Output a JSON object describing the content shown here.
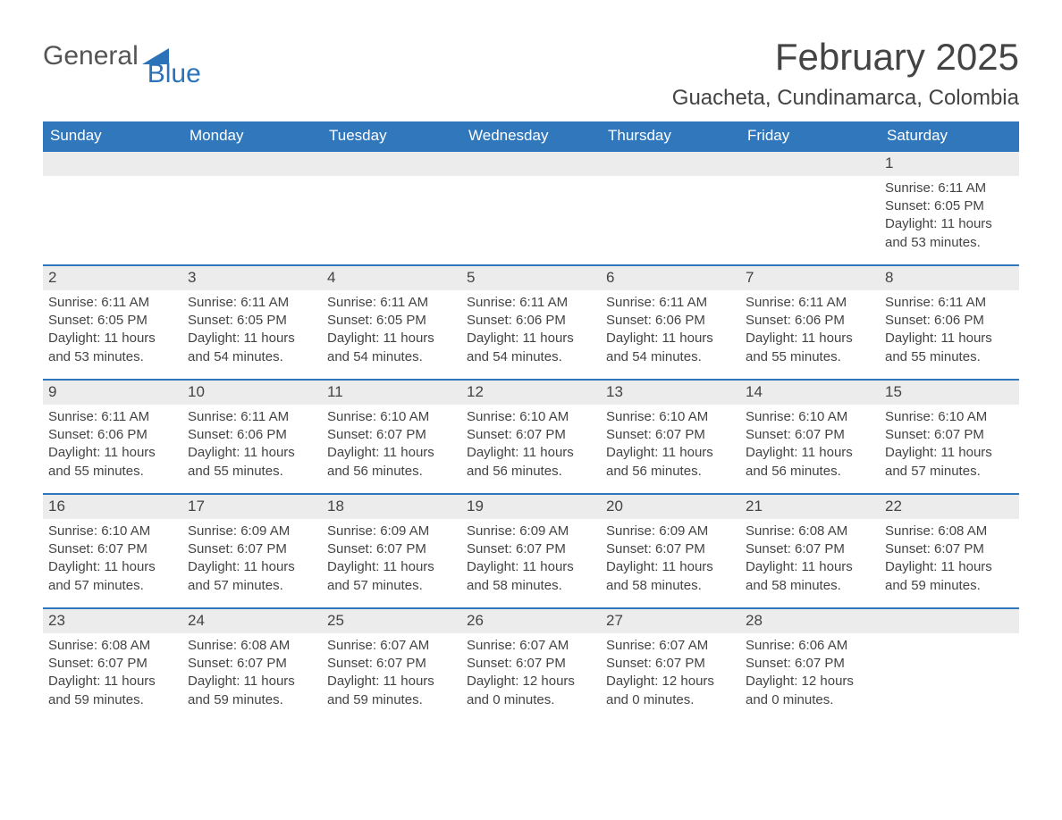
{
  "logo": {
    "text1": "General",
    "text2": "Blue",
    "icon_color": "#2b72b9"
  },
  "title": "February 2025",
  "location": "Guacheta, Cundinamarca, Colombia",
  "colors": {
    "header_bg": "#3077bb",
    "header_text": "#ffffff",
    "daynum_bg": "#ececec",
    "week_border": "#3077bb",
    "text": "#444444"
  },
  "day_header_fontsize": 17,
  "title_fontsize": 42,
  "location_fontsize": 24,
  "days_of_week": [
    "Sunday",
    "Monday",
    "Tuesday",
    "Wednesday",
    "Thursday",
    "Friday",
    "Saturday"
  ],
  "first_weekday_index": 6,
  "days": [
    {
      "n": 1,
      "sunrise": "6:11 AM",
      "sunset": "6:05 PM",
      "daylight": "11 hours and 53 minutes."
    },
    {
      "n": 2,
      "sunrise": "6:11 AM",
      "sunset": "6:05 PM",
      "daylight": "11 hours and 53 minutes."
    },
    {
      "n": 3,
      "sunrise": "6:11 AM",
      "sunset": "6:05 PM",
      "daylight": "11 hours and 54 minutes."
    },
    {
      "n": 4,
      "sunrise": "6:11 AM",
      "sunset": "6:05 PM",
      "daylight": "11 hours and 54 minutes."
    },
    {
      "n": 5,
      "sunrise": "6:11 AM",
      "sunset": "6:06 PM",
      "daylight": "11 hours and 54 minutes."
    },
    {
      "n": 6,
      "sunrise": "6:11 AM",
      "sunset": "6:06 PM",
      "daylight": "11 hours and 54 minutes."
    },
    {
      "n": 7,
      "sunrise": "6:11 AM",
      "sunset": "6:06 PM",
      "daylight": "11 hours and 55 minutes."
    },
    {
      "n": 8,
      "sunrise": "6:11 AM",
      "sunset": "6:06 PM",
      "daylight": "11 hours and 55 minutes."
    },
    {
      "n": 9,
      "sunrise": "6:11 AM",
      "sunset": "6:06 PM",
      "daylight": "11 hours and 55 minutes."
    },
    {
      "n": 10,
      "sunrise": "6:11 AM",
      "sunset": "6:06 PM",
      "daylight": "11 hours and 55 minutes."
    },
    {
      "n": 11,
      "sunrise": "6:10 AM",
      "sunset": "6:07 PM",
      "daylight": "11 hours and 56 minutes."
    },
    {
      "n": 12,
      "sunrise": "6:10 AM",
      "sunset": "6:07 PM",
      "daylight": "11 hours and 56 minutes."
    },
    {
      "n": 13,
      "sunrise": "6:10 AM",
      "sunset": "6:07 PM",
      "daylight": "11 hours and 56 minutes."
    },
    {
      "n": 14,
      "sunrise": "6:10 AM",
      "sunset": "6:07 PM",
      "daylight": "11 hours and 56 minutes."
    },
    {
      "n": 15,
      "sunrise": "6:10 AM",
      "sunset": "6:07 PM",
      "daylight": "11 hours and 57 minutes."
    },
    {
      "n": 16,
      "sunrise": "6:10 AM",
      "sunset": "6:07 PM",
      "daylight": "11 hours and 57 minutes."
    },
    {
      "n": 17,
      "sunrise": "6:09 AM",
      "sunset": "6:07 PM",
      "daylight": "11 hours and 57 minutes."
    },
    {
      "n": 18,
      "sunrise": "6:09 AM",
      "sunset": "6:07 PM",
      "daylight": "11 hours and 57 minutes."
    },
    {
      "n": 19,
      "sunrise": "6:09 AM",
      "sunset": "6:07 PM",
      "daylight": "11 hours and 58 minutes."
    },
    {
      "n": 20,
      "sunrise": "6:09 AM",
      "sunset": "6:07 PM",
      "daylight": "11 hours and 58 minutes."
    },
    {
      "n": 21,
      "sunrise": "6:08 AM",
      "sunset": "6:07 PM",
      "daylight": "11 hours and 58 minutes."
    },
    {
      "n": 22,
      "sunrise": "6:08 AM",
      "sunset": "6:07 PM",
      "daylight": "11 hours and 59 minutes."
    },
    {
      "n": 23,
      "sunrise": "6:08 AM",
      "sunset": "6:07 PM",
      "daylight": "11 hours and 59 minutes."
    },
    {
      "n": 24,
      "sunrise": "6:08 AM",
      "sunset": "6:07 PM",
      "daylight": "11 hours and 59 minutes."
    },
    {
      "n": 25,
      "sunrise": "6:07 AM",
      "sunset": "6:07 PM",
      "daylight": "11 hours and 59 minutes."
    },
    {
      "n": 26,
      "sunrise": "6:07 AM",
      "sunset": "6:07 PM",
      "daylight": "12 hours and 0 minutes."
    },
    {
      "n": 27,
      "sunrise": "6:07 AM",
      "sunset": "6:07 PM",
      "daylight": "12 hours and 0 minutes."
    },
    {
      "n": 28,
      "sunrise": "6:06 AM",
      "sunset": "6:07 PM",
      "daylight": "12 hours and 0 minutes."
    }
  ],
  "labels": {
    "sunrise": "Sunrise: ",
    "sunset": "Sunset: ",
    "daylight": "Daylight: "
  }
}
